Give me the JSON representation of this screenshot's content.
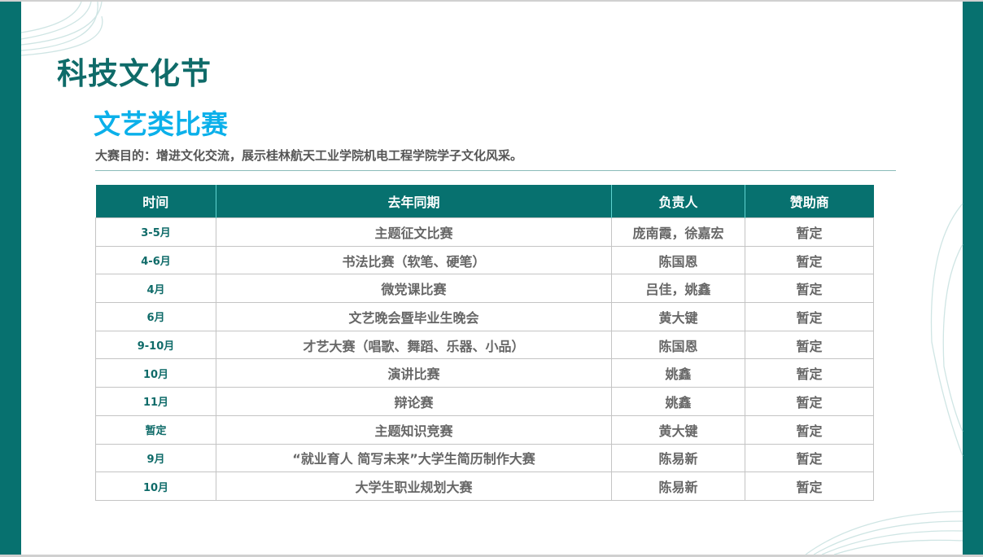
{
  "title": "科技文化节",
  "subtitle": "文艺类比赛",
  "description": "大赛目的：增进文化交流，展示桂林航天工业学院机电工程学院学子文化风采。",
  "colors": {
    "accent": "#07716f",
    "subtitle": "#0bb0ea"
  },
  "table": {
    "headers": [
      "时间",
      "去年同期",
      "负责人",
      "赞助商"
    ],
    "rows": [
      [
        "3-5月",
        "主题征文比赛",
        "庞南霞，徐嘉宏",
        "暂定"
      ],
      [
        "4-6月",
        "书法比赛（软笔、硬笔）",
        "陈国恩",
        "暂定"
      ],
      [
        "4月",
        "微党课比赛",
        "吕佳，姚鑫",
        "暂定"
      ],
      [
        "6月",
        "文艺晚会暨毕业生晚会",
        "黄大键",
        "暂定"
      ],
      [
        "9-10月",
        "才艺大赛（唱歌、舞蹈、乐器、小品）",
        "陈国恩",
        "暂定"
      ],
      [
        "10月",
        "演讲比赛",
        "姚鑫",
        "暂定"
      ],
      [
        "11月",
        "辩论赛",
        "姚鑫",
        "暂定"
      ],
      [
        "暂定",
        "主题知识竞赛",
        "黄大键",
        "暂定"
      ],
      [
        "9月",
        "“就业育人 简写未来”大学生简历制作大赛",
        "陈易新",
        "暂定"
      ],
      [
        "10月",
        "大学生职业规划大赛",
        "陈易新",
        "暂定"
      ]
    ]
  }
}
